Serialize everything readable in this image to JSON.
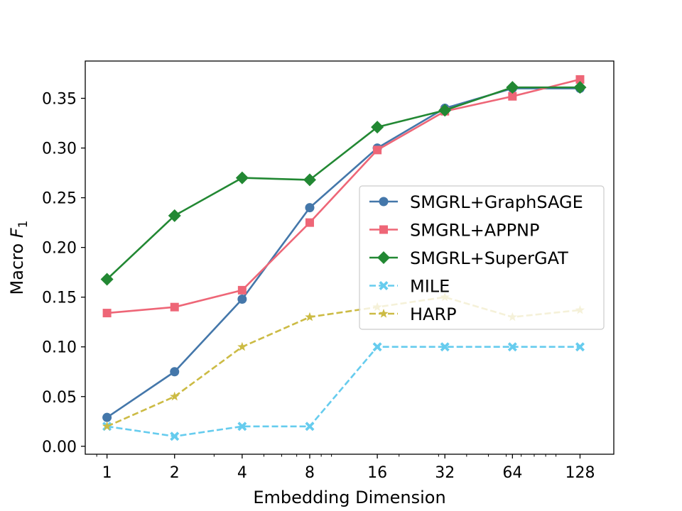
{
  "chart_data": {
    "type": "line",
    "title": "",
    "xlabel": "Embedding Dimension",
    "ylabel_prefix": "Macro ",
    "ylabel_var": "F",
    "ylabel_sub": "1",
    "x_scale": "log2",
    "x": [
      1,
      2,
      4,
      8,
      16,
      32,
      64,
      128
    ],
    "x_tick_labels": [
      "1",
      "2",
      "4",
      "8",
      "16",
      "32",
      "64",
      "128"
    ],
    "xlim": [
      0.8,
      181
    ],
    "ylim": [
      -0.008,
      0.3875
    ],
    "y_ticks": [
      0.0,
      0.05,
      0.1,
      0.15,
      0.2,
      0.25,
      0.3,
      0.35
    ],
    "y_tick_labels": [
      "0.00",
      "0.05",
      "0.10",
      "0.15",
      "0.20",
      "0.25",
      "0.30",
      "0.35"
    ],
    "legend_position": "center-right",
    "grid": false,
    "series": [
      {
        "name": "SMGRL+GraphSAGE",
        "color": "#4477aa",
        "marker": "circle",
        "linestyle": "solid",
        "alpha": 1,
        "values": [
          0.029,
          0.075,
          0.148,
          0.24,
          0.3,
          0.34,
          0.36,
          0.36
        ]
      },
      {
        "name": "SMGRL+APPNP",
        "color": "#ee6677",
        "marker": "square",
        "linestyle": "solid",
        "alpha": 1,
        "values": [
          0.134,
          0.14,
          0.157,
          0.225,
          0.298,
          0.337,
          0.352,
          0.369
        ]
      },
      {
        "name": "SMGRL+SuperGAT",
        "color": "#228833",
        "marker": "diamond",
        "linestyle": "solid",
        "alpha": 1,
        "values": [
          0.168,
          0.232,
          0.27,
          0.268,
          0.321,
          0.338,
          0.361,
          0.361
        ]
      },
      {
        "name": "MILE",
        "color": "#66ccee",
        "marker": "x",
        "linestyle": "dashed",
        "alpha": 1,
        "values": [
          0.02,
          0.01,
          0.02,
          0.02,
          0.1,
          0.1,
          0.1,
          0.1
        ]
      },
      {
        "name": "HARP",
        "color": "#ccbb44",
        "marker": "star",
        "linestyle": "dashed",
        "alpha": 1,
        "values": [
          0.02,
          0.05,
          0.1,
          0.13,
          0.14,
          0.15,
          0.13,
          0.137
        ]
      }
    ]
  }
}
